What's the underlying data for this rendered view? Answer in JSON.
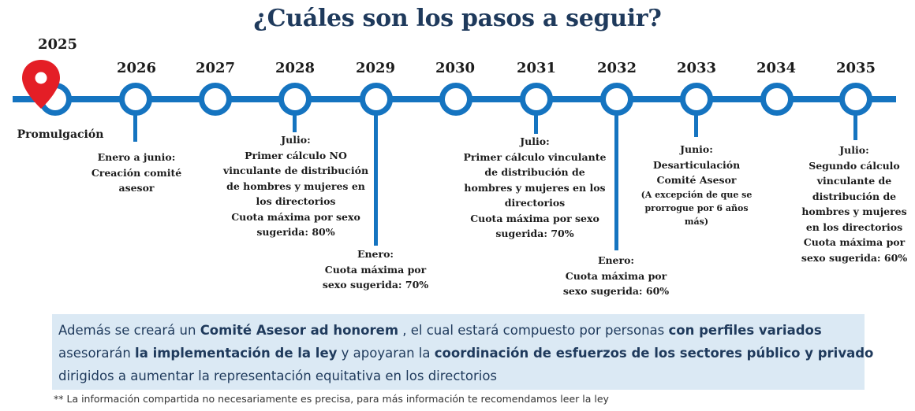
{
  "title": "¿Cuáles son los pasos a seguir?",
  "timeline": {
    "years": [
      "2025",
      "2026",
      "2027",
      "2028",
      "2029",
      "2030",
      "2031",
      "2032",
      "2033",
      "2034",
      "2035"
    ],
    "events": {
      "promulgacion": [
        "Promulgación"
      ],
      "y2026": [
        "Enero a junio:",
        "Creación comité",
        "asesor"
      ],
      "y2028": [
        "Julio:",
        "Primer cálculo NO",
        "vinculante de distribución",
        "de hombres y mujeres en",
        "los directorios",
        "Cuota máxima por sexo",
        "sugerida: 80%"
      ],
      "y2029": [
        "Enero:",
        "Cuota máxima por",
        "sexo sugerida: 70%"
      ],
      "y2031": [
        "Julio:",
        "Primer cálculo vinculante",
        "de distribución de",
        "hombres y mujeres en los",
        "directorios",
        "Cuota máxima por sexo",
        "sugerida: 70%"
      ],
      "y2032": [
        "Enero:",
        "Cuota máxima por",
        "sexo sugerida: 60%"
      ],
      "y2033": [
        "Junio:",
        "Desarticulación",
        "Comité Asesor",
        "(A excepción de que se",
        "prorrogue por 6 años",
        "más)"
      ],
      "y2035": [
        "Julio:",
        "Segundo cálculo",
        "vinculante de",
        "distribución de",
        "hombres y mujeres",
        "en los directorios",
        "Cuota máxima por",
        "sexo sugerida: 60%"
      ]
    }
  },
  "info": {
    "l1a": "Además se creará un ",
    "l1b": "Comité Asesor ad honorem",
    "l1c": " , el cual  estará compuesto por personas ",
    "l1d": "con perfiles variados",
    "l2a": "asesorarán ",
    "l2b": "la implementación de la ley",
    "l2c": " y apoyaran la ",
    "l2d": "coordinación de esfuerzos de los sectores público y privado",
    "l3a": "dirigidos a aumentar la representación equitativa en los directorios"
  },
  "footnote": "** La información compartida no necesariamente es precisa, para más información te recomendamos leer la ley",
  "colors": {
    "timeline": "#1574c0",
    "title": "#1f3a5c",
    "pin": "#e41e26",
    "box": "#dbe9f4"
  },
  "icons": {
    "marker": "map-pin-icon"
  }
}
